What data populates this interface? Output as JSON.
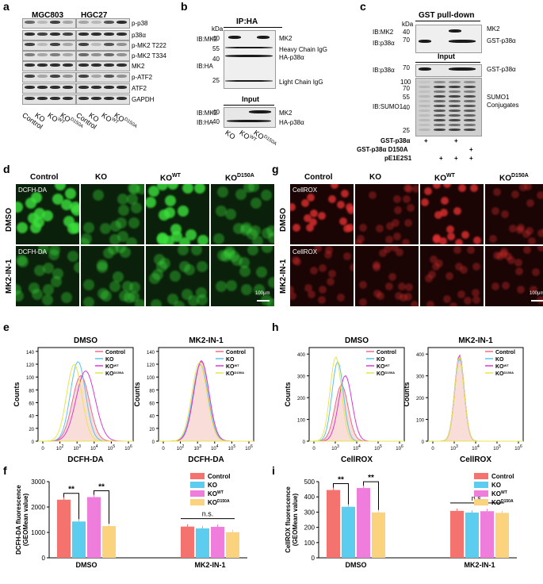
{
  "panels": {
    "a": {
      "letter": "a",
      "headers": [
        "MGC803",
        "HGC27"
      ],
      "rows": [
        "p-p38",
        "p38α",
        "p-MK2 T222",
        "p-MK2 T334",
        "MK2",
        "p-ATF2",
        "ATF2",
        "GAPDH"
      ],
      "lanes": [
        "Control",
        "KO",
        "KO",
        "KO"
      ],
      "lane_sups": [
        "",
        "",
        "WT",
        "D150A"
      ]
    },
    "b": {
      "letter": "b",
      "ip_title": "IP:HA",
      "kda": "kDa",
      "left_labels": [
        "IB:MK2",
        "IB:HA"
      ],
      "markers": [
        "40",
        "55",
        "40",
        "25"
      ],
      "right_labels": [
        "MK2",
        "Heavy Chain IgG",
        "HA-p38α",
        "Light Chain IgG"
      ],
      "input_title": "Input",
      "input_left": [
        "IB:MK2",
        "IB:HA"
      ],
      "input_markers": [
        "40",
        "40"
      ],
      "input_right": [
        "MK2",
        "HA-p38α"
      ],
      "lanes": [
        "KO",
        "KO",
        "KO"
      ],
      "lane_sups": [
        "",
        "WT",
        "D150A"
      ]
    },
    "c": {
      "letter": "c",
      "title": "GST pull-down",
      "kda": "kDa",
      "top_left": [
        "IB:MK2",
        "IB:p38α"
      ],
      "top_markers": [
        "40",
        "70"
      ],
      "top_right": [
        "MK2",
        "GST-p38α"
      ],
      "input_title": "Input",
      "input_left": "IB:p38α",
      "input_marker": "70",
      "input_right": "GST-p38α",
      "sumo_left": "IB:SUMO1",
      "sumo_markers": [
        "100",
        "70",
        "55",
        "40",
        "25"
      ],
      "sumo_right": [
        "SUMO1",
        "Conjugates"
      ],
      "cond_rows": [
        {
          "label": "GST-p38α",
          "signs": [
            "+",
            "",
            "+",
            ""
          ]
        },
        {
          "label": "GST-p38α D150A",
          "signs": [
            "",
            "",
            "",
            "+"
          ]
        },
        {
          "label": "pE1E2S1",
          "signs": [
            "",
            "+",
            "+",
            "+"
          ]
        }
      ]
    },
    "d": {
      "letter": "d",
      "cols": [
        "Control",
        "KO",
        "KO",
        "KO"
      ],
      "col_sups": [
        "",
        "",
        "WT",
        "D150A"
      ],
      "rows": [
        "DMSO",
        "MK2-IN-1"
      ],
      "stain": "DCFH-DA",
      "scale": "100μm"
    },
    "g": {
      "letter": "g",
      "cols": [
        "Control",
        "KO",
        "KO",
        "KO"
      ],
      "col_sups": [
        "",
        "",
        "WT",
        "D150A"
      ],
      "rows": [
        "DMSO",
        "MK2-IN-1"
      ],
      "stain": "CellROX",
      "scale": "100μm"
    },
    "e": {
      "letter": "e",
      "plots": [
        {
          "title": "DMSO",
          "xlabel": "DCFH-DA",
          "ylabel": "Counts",
          "yticks": [
            "0",
            "20",
            "40",
            "60",
            "80",
            "100",
            "120",
            "140"
          ]
        },
        {
          "title": "MK2-IN-1",
          "xlabel": "DCFH-DA",
          "ylabel": "Counts",
          "yticks": [
            "0",
            "20",
            "40",
            "60",
            "80",
            "100",
            "120",
            "140"
          ]
        }
      ]
    },
    "h": {
      "letter": "h",
      "plots": [
        {
          "title": "DMSO",
          "xlabel": "CellROX",
          "ylabel": "Counts",
          "yticks": [
            "0",
            "100",
            "200",
            "300",
            "400"
          ]
        },
        {
          "title": "MK2-IN-1",
          "xlabel": "CellROX",
          "ylabel": "Counts",
          "yticks": [
            "0",
            "100",
            "200",
            "300",
            "400"
          ]
        }
      ]
    },
    "f": {
      "letter": "f"
    },
    "i": {
      "letter": "i"
    }
  },
  "flow_legend": {
    "entries": [
      {
        "label": "Control",
        "sup": "",
        "color": "#f06b8a"
      },
      {
        "label": "KO",
        "sup": "",
        "color": "#5bc4ee"
      },
      {
        "label": "KO",
        "sup": "WT",
        "color": "#d63ad6"
      },
      {
        "label": "KO",
        "sup": "D150A",
        "color": "#e8e64a"
      }
    ]
  },
  "flow_xticks": [
    "0",
    "10",
    "10",
    "10",
    "10",
    "10"
  ],
  "flow_xsups": [
    "",
    "2",
    "3",
    "4",
    "5",
    "6"
  ],
  "flow_xticks_h": [
    "0",
    "10",
    "10",
    "10",
    "10"
  ],
  "flow_xsups_h": [
    "",
    "3",
    "4",
    "5",
    "6"
  ],
  "bar_legend": {
    "entries": [
      {
        "label": "Control",
        "sup": "",
        "color": "#f4736e"
      },
      {
        "label": "KO",
        "sup": "",
        "color": "#5ccdef"
      },
      {
        "label": "KO",
        "sup": "WT",
        "color": "#ef7ddb"
      },
      {
        "label": "KO",
        "sup": "D150A",
        "color": "#fbd27d"
      }
    ]
  },
  "chart_data": [
    {
      "type": "bar",
      "panel": "f",
      "categories": [
        "DMSO",
        "MK2-IN-1"
      ],
      "series": [
        {
          "name": "Control",
          "values": [
            2290,
            1230
          ]
        },
        {
          "name": "KO",
          "values": [
            1430,
            1160
          ]
        },
        {
          "name": "KO WT",
          "values": [
            2390,
            1220
          ]
        },
        {
          "name": "KO D150A",
          "values": [
            1250,
            1010
          ]
        }
      ],
      "ylabel": "DCFH-DA fluorescence (GEOMean value)",
      "ylim": [
        0,
        3000
      ],
      "yticks": [
        0,
        1000,
        2000,
        3000
      ],
      "annotations": [
        "**",
        "**",
        "n.s."
      ]
    },
    {
      "type": "bar",
      "panel": "i",
      "categories": [
        "DMSO",
        "MK2-IN-1"
      ],
      "series": [
        {
          "name": "Control",
          "values": [
            445,
            308
          ]
        },
        {
          "name": "KO",
          "values": [
            335,
            297
          ]
        },
        {
          "name": "KO WT",
          "values": [
            458,
            306
          ]
        },
        {
          "name": "KO D150A",
          "values": [
            298,
            295
          ]
        }
      ],
      "ylabel": "CellROX fluorescence (GEOMean value)",
      "ylim": [
        0,
        500
      ],
      "yticks": [
        0,
        100,
        200,
        300,
        400,
        500
      ],
      "annotations": [
        "**",
        "**",
        "n.s."
      ]
    }
  ]
}
